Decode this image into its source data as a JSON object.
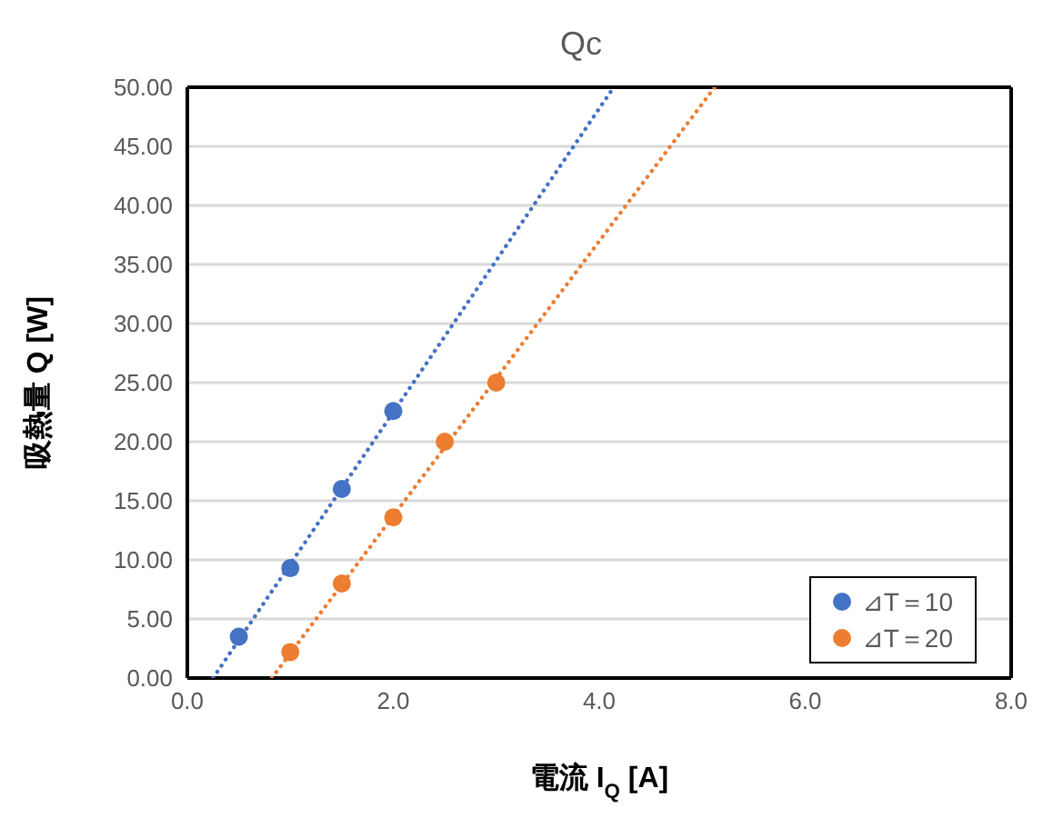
{
  "chart_data": {
    "type": "scatter",
    "title": "Qc",
    "xlabel": "電流 I$_{Q}$ [A]",
    "ylabel": "吸熱量 Q [W]",
    "xlim": [
      0,
      8
    ],
    "xticks": [
      {
        "value": 0,
        "label": "0.0"
      },
      {
        "value": 2,
        "label": "2.0"
      },
      {
        "value": 4,
        "label": "4.0"
      },
      {
        "value": 6,
        "label": "6.0"
      },
      {
        "value": 8,
        "label": "8.0"
      }
    ],
    "ylim": [
      0,
      50
    ],
    "yticks": [
      {
        "value": 0,
        "label": "0.00"
      },
      {
        "value": 5,
        "label": "5.00"
      },
      {
        "value": 10,
        "label": "10.00"
      },
      {
        "value": 15,
        "label": "15.00"
      },
      {
        "value": 20,
        "label": "20.00"
      },
      {
        "value": 25,
        "label": "25.00"
      },
      {
        "value": 30,
        "label": "30.00"
      },
      {
        "value": 35,
        "label": "35.00"
      },
      {
        "value": 40,
        "label": "40.00"
      },
      {
        "value": 45,
        "label": "45.00"
      },
      {
        "value": 50,
        "label": "50.00"
      }
    ],
    "grid": "y",
    "legend": "bottom right",
    "marker": "circle",
    "series": [
      {
        "name": "⊿T＝10",
        "color": "#4472c4",
        "x": [
          0.5,
          1.0,
          1.5,
          2.0
        ],
        "values": [
          3.5,
          9.3,
          16.0,
          22.6
        ]
      },
      {
        "name": "⊿T＝20",
        "color": "#ed7d31",
        "x": [
          1.0,
          1.5,
          2.0,
          2.5,
          3.0
        ],
        "values": [
          2.2,
          8.0,
          13.6,
          20.0,
          25.0
        ]
      },
      {
        "type": "line",
        "color": "#4472c4",
        "line_style": "dotted",
        "marker": "none",
        "x": [
          0.25,
          4.14
        ],
        "values": [
          0,
          50
        ]
      },
      {
        "type": "line",
        "color": "#ed7d31",
        "line_style": "dotted",
        "marker": "none",
        "x": [
          0.82,
          5.12
        ],
        "values": [
          0,
          50
        ]
      }
    ]
  }
}
